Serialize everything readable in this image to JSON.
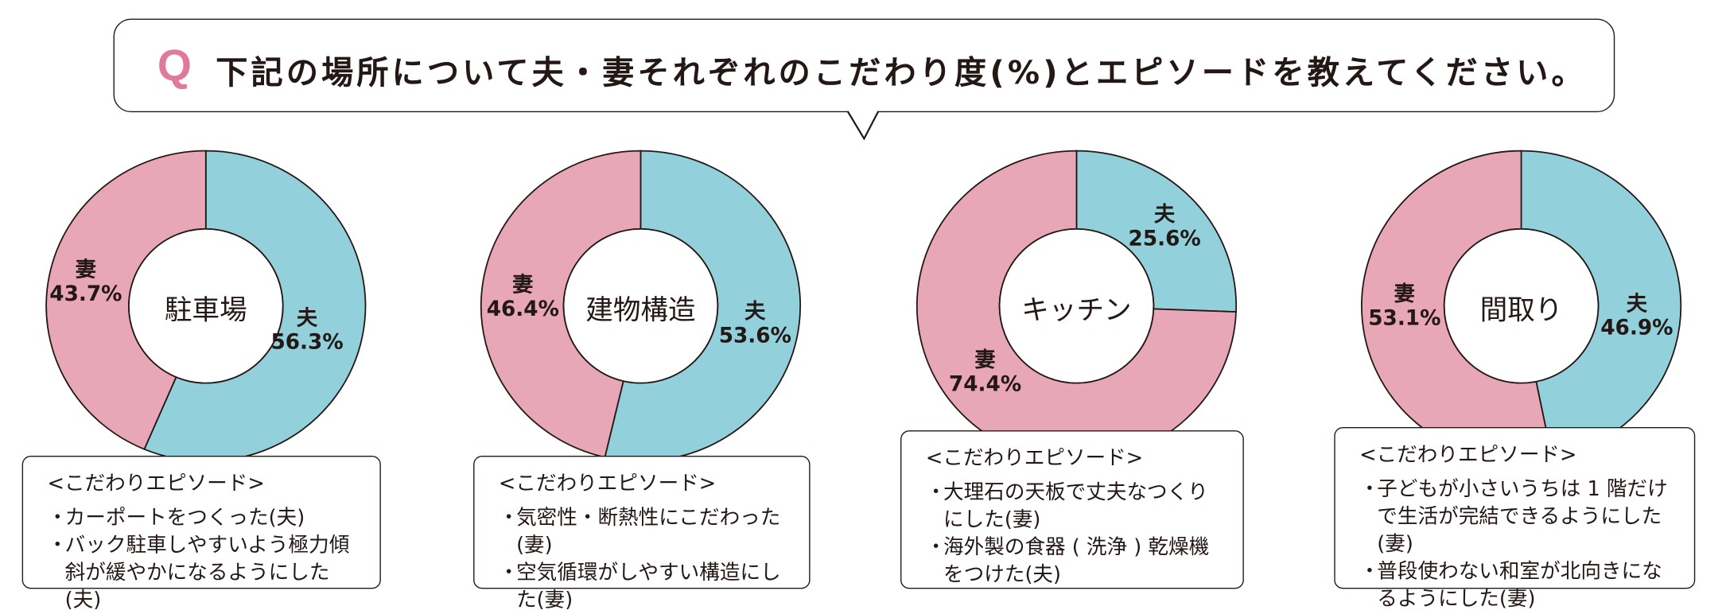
{
  "question": {
    "marker": "Q",
    "text": "下記の場所について夫・妻それぞれのこだわり度(%)とエピソードを教えてください。"
  },
  "colors": {
    "husband": "#92d0db",
    "wife": "#e8a7b7",
    "q_marker": "#e07a98"
  },
  "chart_data": [
    {
      "type": "pie",
      "title": "駐車場",
      "labels": [
        "夫",
        "妻"
      ],
      "values": [
        56.3,
        43.7
      ],
      "value_labels": [
        "56.3%",
        "43.7%"
      ]
    },
    {
      "type": "pie",
      "title": "建物構造",
      "labels": [
        "夫",
        "妻"
      ],
      "values": [
        53.6,
        46.4
      ],
      "value_labels": [
        "53.6%",
        "46.4%"
      ]
    },
    {
      "type": "pie",
      "title": "キッチン",
      "labels": [
        "夫",
        "妻"
      ],
      "values": [
        25.6,
        74.4
      ],
      "value_labels": [
        "25.6%",
        "74.4%"
      ]
    },
    {
      "type": "pie",
      "title": "間取り",
      "labels": [
        "夫",
        "妻"
      ],
      "values": [
        46.9,
        53.1
      ],
      "value_labels": [
        "46.9%",
        "53.1%"
      ]
    }
  ],
  "episodes": [
    {
      "heading": "<こだわりエピソード>",
      "items": [
        "カーポートをつくった(夫)",
        "バック駐車しやすいよう極力傾斜が緩やかになるようにした(夫)"
      ]
    },
    {
      "heading": "<こだわりエピソード>",
      "items": [
        "気密性・断熱性にこだわった(妻)",
        "空気循環がしやすい構造にした(妻)"
      ]
    },
    {
      "heading": "<こだわりエピソード>",
      "items": [
        "大理石の天板で丈夫なつくりにした(妻)",
        "海外製の食器 ( 洗浄 ) 乾燥機をつけた(夫)"
      ]
    },
    {
      "heading": "<こだわりエピソード>",
      "items": [
        "子どもが小さいうちは 1 階だけで生活が完結できるようにした(妻)",
        "普段使わない和室が北向きになるようにした(妻)"
      ]
    }
  ]
}
